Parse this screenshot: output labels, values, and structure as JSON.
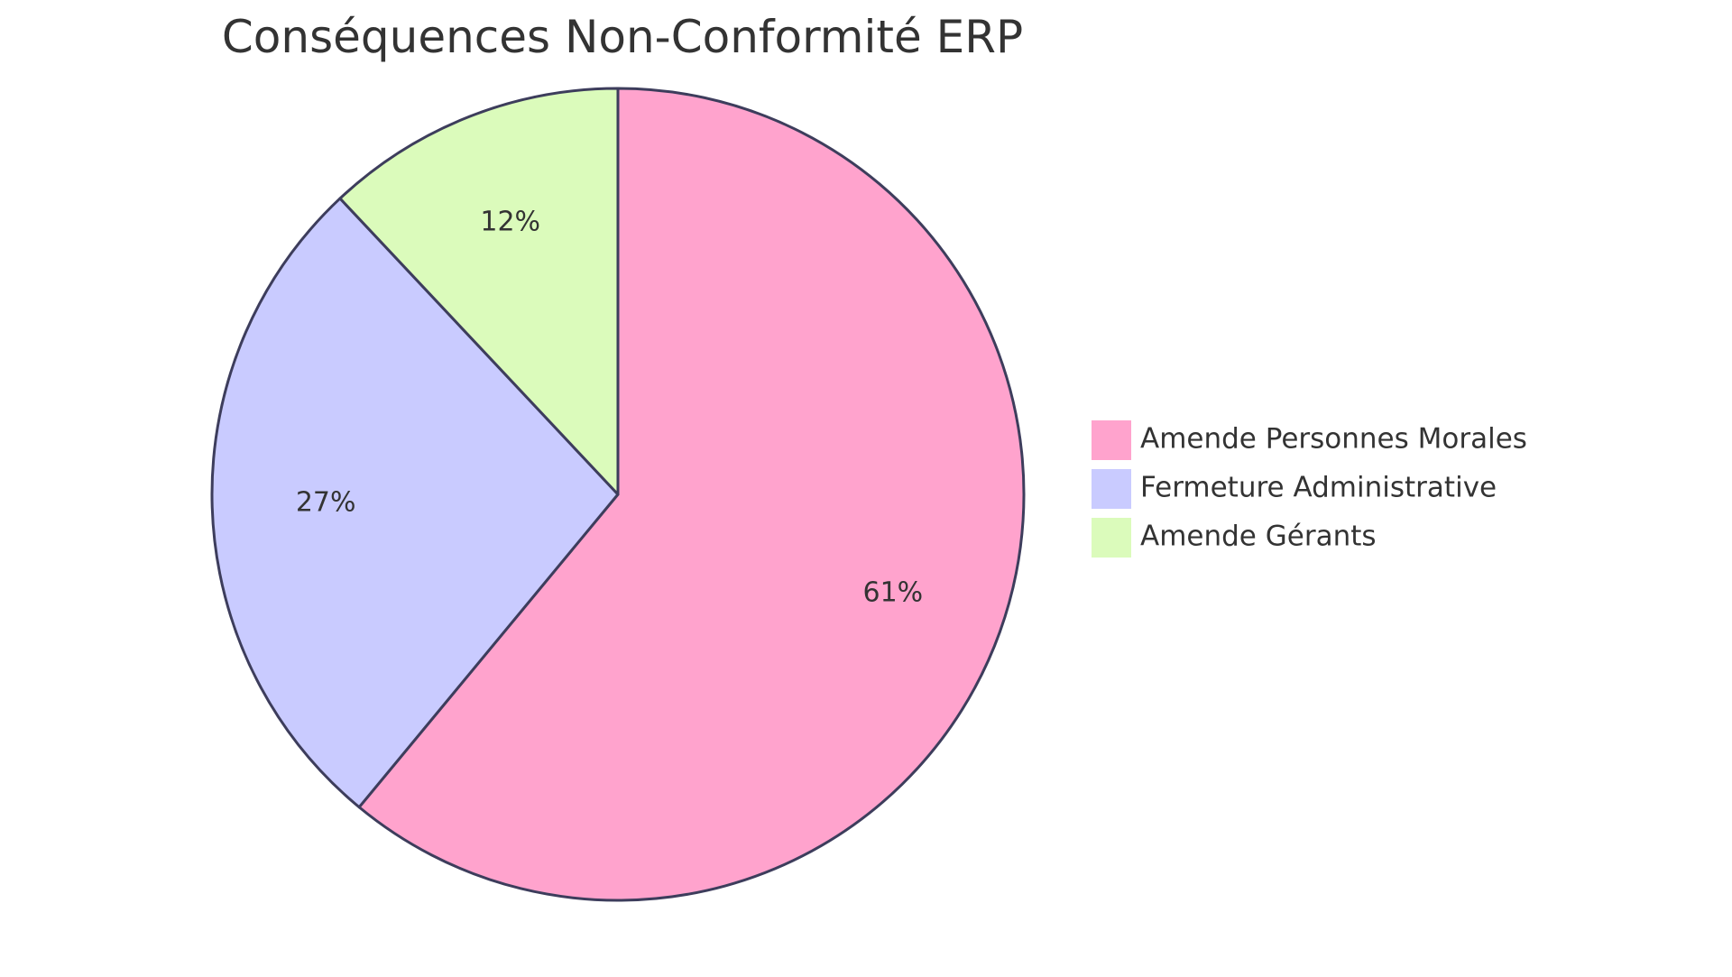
{
  "chart_data": {
    "type": "pie",
    "title": "Conséquences Non-Conformité ERP",
    "slices": [
      {
        "label": "Amende Personnes Morales",
        "value": 61,
        "display": "61%",
        "color": "#FFA3CD"
      },
      {
        "label": "Fermeture Administrative",
        "value": 27,
        "display": "27%",
        "color": "#C9CBFF"
      },
      {
        "label": "Amende Gérants",
        "value": 12,
        "display": "12%",
        "color": "#DBFBBB"
      }
    ],
    "stroke_color": "#3D3D5C",
    "start_angle": "top",
    "direction": "clockwise",
    "legend_position": "right"
  }
}
